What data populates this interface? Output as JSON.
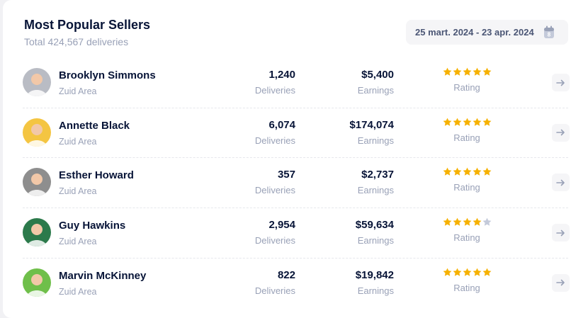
{
  "header": {
    "title": "Most Popular Sellers",
    "subtitle": "Total 424,567 deliveries",
    "date_range": "25 mart. 2024 - 23 apr. 2024",
    "date_icon": "calendar-icon"
  },
  "colors": {
    "star_filled": "#f6b100",
    "star_empty": "#c4cada",
    "text_dark": "#071437",
    "text_muted": "#99a1b7"
  },
  "sellers": [
    {
      "name": "Brooklyn Simmons",
      "area": "Zuid Area",
      "deliveries": "1,240",
      "deliveries_label": "Deliveries",
      "earnings": "$5,400",
      "earnings_label": "Earnings",
      "rating": 5,
      "rating_label": "Rating",
      "avatar_color": "#b9bcc4"
    },
    {
      "name": "Annette Black",
      "area": "Zuid Area",
      "deliveries": "6,074",
      "deliveries_label": "Deliveries",
      "earnings": "$174,074",
      "earnings_label": "Earnings",
      "rating": 5,
      "rating_label": "Rating",
      "avatar_color": "#f4c542"
    },
    {
      "name": "Esther Howard",
      "area": "Zuid Area",
      "deliveries": "357",
      "deliveries_label": "Deliveries",
      "earnings": "$2,737",
      "earnings_label": "Earnings",
      "rating": 5,
      "rating_label": "Rating",
      "avatar_color": "#8e8e8e"
    },
    {
      "name": "Guy Hawkins",
      "area": "Zuid Area",
      "deliveries": "2,954",
      "deliveries_label": "Deliveries",
      "earnings": "$59,634",
      "earnings_label": "Earnings",
      "rating": 4,
      "rating_label": "Rating",
      "avatar_color": "#2c7a4b"
    },
    {
      "name": "Marvin McKinney",
      "area": "Zuid Area",
      "deliveries": "822",
      "deliveries_label": "Deliveries",
      "earnings": "$19,842",
      "earnings_label": "Earnings",
      "rating": 5,
      "rating_label": "Rating",
      "avatar_color": "#6fbf4a"
    }
  ]
}
